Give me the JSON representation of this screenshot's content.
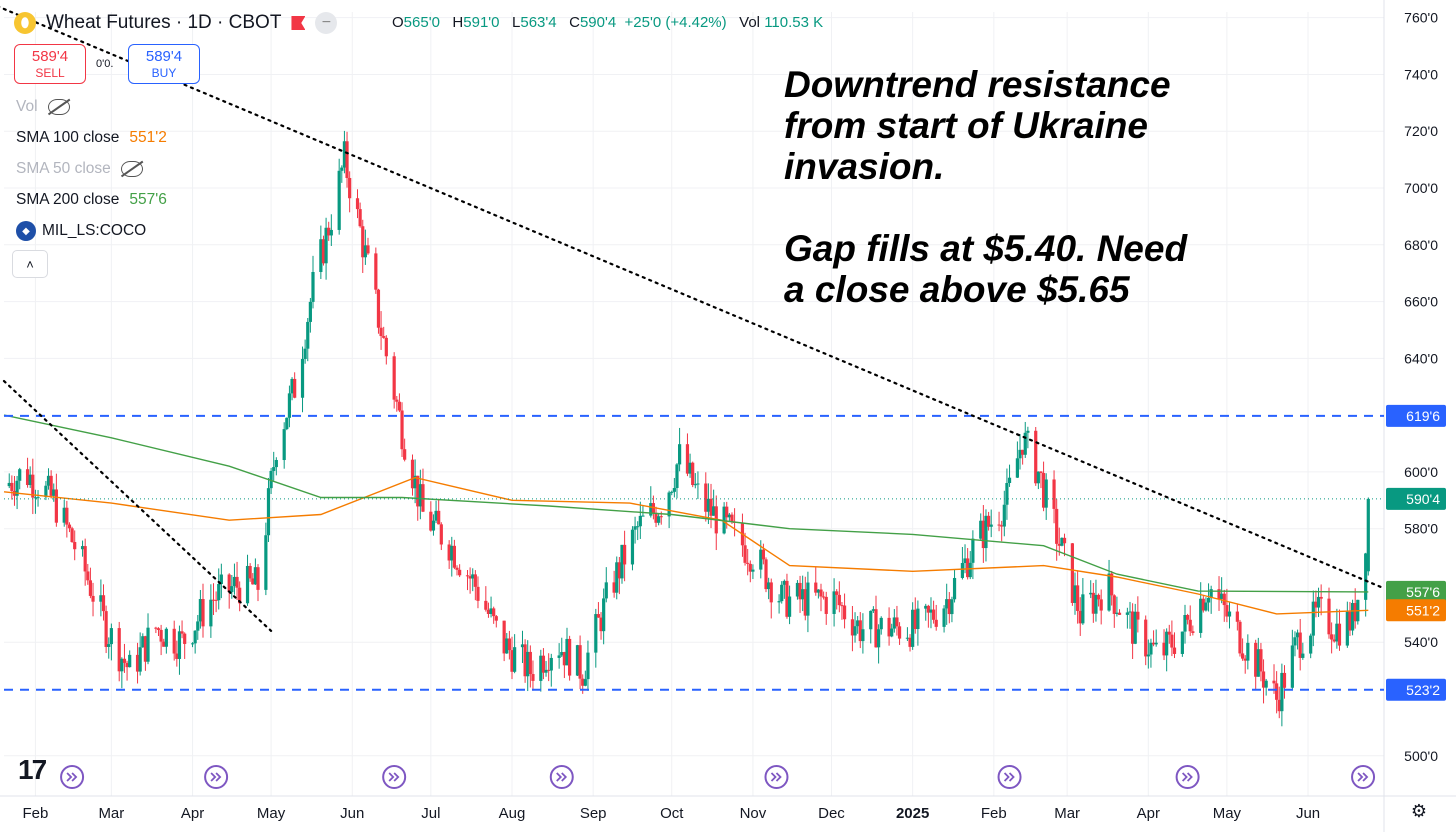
{
  "header": {
    "symbol_title": "Wheat Futures · 1D · CBOT",
    "logo_glyph": "⬮",
    "more_glyph": "−",
    "ohlc": {
      "o_label": "O",
      "o_value": "565'0",
      "h_label": "H",
      "h_value": "591'0",
      "l_label": "L",
      "l_value": "563'4",
      "c_label": "C",
      "c_value": "590'4",
      "change": "+25'0 (+4.42%)",
      "vol_label": "Vol",
      "vol_value": "110.53 K"
    }
  },
  "trade": {
    "sell_price": "589'4",
    "sell_label": "SELL",
    "buy_price": "589'4",
    "buy_label": "BUY",
    "spread": "0'0."
  },
  "indicators": {
    "vol_label": "Vol",
    "sma100_label": "SMA 100 close",
    "sma100_value": "551'2",
    "sma50_label": "SMA 50 close",
    "sma200_label": "SMA 200 close",
    "sma200_value": "557'6",
    "coco_label": "MIL_LS:COCO",
    "collapse_glyph": "˄"
  },
  "annotation": {
    "line1": "Downtrend resistance",
    "line2": "from start of Ukraine",
    "line3": "invasion.",
    "line4": "Gap fills at $5.40. Need",
    "line5": "a close above $5.65"
  },
  "branding": {
    "tv_logo": "17"
  },
  "colors": {
    "up": "#089981",
    "down": "#f23645",
    "sma100": "#f57c00",
    "sma200": "#43a047",
    "hline": "#2962ff",
    "trendline": "#000000",
    "accent": "#2962ff",
    "event": "#7e57c2"
  },
  "icons": {
    "event_icon": "event-marker-icon",
    "settings_icon": "gear-icon",
    "eye_off": "eye-off-icon"
  },
  "chart_data": {
    "type": "candlestick",
    "title": "Wheat Futures · 1D · CBOT",
    "xlabel": "",
    "ylabel": "",
    "ylim": [
      495,
      762
    ],
    "y_ticks": [
      {
        "value": 760,
        "label": "760'0"
      },
      {
        "value": 740,
        "label": "740'0"
      },
      {
        "value": 720,
        "label": "720'0"
      },
      {
        "value": 700,
        "label": "700'0"
      },
      {
        "value": 680,
        "label": "680'0"
      },
      {
        "value": 660,
        "label": "660'0"
      },
      {
        "value": 640,
        "label": "640'0"
      },
      {
        "value": 600,
        "label": "600'0"
      },
      {
        "value": 580,
        "label": "580'0"
      },
      {
        "value": 540,
        "label": "540'0"
      },
      {
        "value": 500,
        "label": "500'0"
      }
    ],
    "x_range": [
      "2024-01-20",
      "2025-06-30"
    ],
    "x_ticks": [
      {
        "date": "2024-02-01",
        "label": "Feb"
      },
      {
        "date": "2024-03-01",
        "label": "Mar"
      },
      {
        "date": "2024-04-01",
        "label": "Apr"
      },
      {
        "date": "2024-05-01",
        "label": "May"
      },
      {
        "date": "2024-06-01",
        "label": "Jun"
      },
      {
        "date": "2024-07-01",
        "label": "Jul"
      },
      {
        "date": "2024-08-01",
        "label": "Aug"
      },
      {
        "date": "2024-09-01",
        "label": "Sep"
      },
      {
        "date": "2024-10-01",
        "label": "Oct"
      },
      {
        "date": "2024-11-01",
        "label": "Nov"
      },
      {
        "date": "2024-12-01",
        "label": "Dec"
      },
      {
        "date": "2025-01-01",
        "label": "2025"
      },
      {
        "date": "2025-02-01",
        "label": "Feb"
      },
      {
        "date": "2025-03-01",
        "label": "Mar"
      },
      {
        "date": "2025-04-01",
        "label": "Apr"
      },
      {
        "date": "2025-05-01",
        "label": "May"
      },
      {
        "date": "2025-06-01",
        "label": "Jun"
      }
    ],
    "price_path": [
      [
        "2024-01-20",
        595
      ],
      [
        "2024-01-28",
        600
      ],
      [
        "2024-02-08",
        590
      ],
      [
        "2024-02-18",
        570
      ],
      [
        "2024-02-28",
        545
      ],
      [
        "2024-03-08",
        530
      ],
      [
        "2024-03-18",
        545
      ],
      [
        "2024-03-28",
        540
      ],
      [
        "2024-04-08",
        555
      ],
      [
        "2024-04-18",
        560
      ],
      [
        "2024-04-26",
        560
      ],
      [
        "2024-05-03",
        610
      ],
      [
        "2024-05-10",
        630
      ],
      [
        "2024-05-17",
        665
      ],
      [
        "2024-05-24",
        690
      ],
      [
        "2024-05-29",
        710
      ],
      [
        "2024-06-04",
        685
      ],
      [
        "2024-06-12",
        650
      ],
      [
        "2024-06-20",
        615
      ],
      [
        "2024-06-28",
        585
      ],
      [
        "2024-07-08",
        575
      ],
      [
        "2024-07-18",
        560
      ],
      [
        "2024-07-28",
        540
      ],
      [
        "2024-08-08",
        530
      ],
      [
        "2024-08-18",
        540
      ],
      [
        "2024-08-28",
        530
      ],
      [
        "2024-09-08",
        560
      ],
      [
        "2024-09-18",
        580
      ],
      [
        "2024-09-28",
        590
      ],
      [
        "2024-10-04",
        605
      ],
      [
        "2024-10-12",
        590
      ],
      [
        "2024-10-22",
        580
      ],
      [
        "2024-11-02",
        570
      ],
      [
        "2024-11-12",
        555
      ],
      [
        "2024-11-22",
        555
      ],
      [
        "2024-12-02",
        555
      ],
      [
        "2024-12-12",
        545
      ],
      [
        "2024-12-22",
        545
      ],
      [
        "2025-01-04",
        545
      ],
      [
        "2025-01-14",
        555
      ],
      [
        "2025-01-25",
        575
      ],
      [
        "2025-02-06",
        590
      ],
      [
        "2025-02-12",
        612
      ],
      [
        "2025-02-18",
        600
      ],
      [
        "2025-02-26",
        575
      ],
      [
        "2025-03-06",
        550
      ],
      [
        "2025-03-16",
        560
      ],
      [
        "2025-03-26",
        545
      ],
      [
        "2025-04-05",
        535
      ],
      [
        "2025-04-15",
        545
      ],
      [
        "2025-04-24",
        560
      ],
      [
        "2025-05-04",
        545
      ],
      [
        "2025-05-14",
        530
      ],
      [
        "2025-05-20",
        520
      ],
      [
        "2025-05-28",
        540
      ],
      [
        "2025-06-05",
        550
      ],
      [
        "2025-06-12",
        545
      ],
      [
        "2025-06-18",
        548
      ],
      [
        "2025-06-22",
        565
      ],
      [
        "2025-06-24",
        590.5
      ]
    ],
    "series": [
      {
        "name": "SMA 100 close",
        "values": [
          [
            "2024-01-20",
            593
          ],
          [
            "2024-03-01",
            589
          ],
          [
            "2024-04-15",
            583
          ],
          [
            "2024-05-20",
            585
          ],
          [
            "2024-06-25",
            598
          ],
          [
            "2024-08-01",
            590
          ],
          [
            "2024-09-15",
            589
          ],
          [
            "2024-10-20",
            583
          ],
          [
            "2024-11-15",
            567
          ],
          [
            "2025-01-01",
            565
          ],
          [
            "2025-02-20",
            567
          ],
          [
            "2025-03-20",
            563
          ],
          [
            "2025-04-20",
            557
          ],
          [
            "2025-05-20",
            550
          ],
          [
            "2025-06-24",
            551.25
          ]
        ]
      },
      {
        "name": "SMA 200 close",
        "values": [
          [
            "2024-01-20",
            620
          ],
          [
            "2024-03-01",
            612
          ],
          [
            "2024-04-15",
            602
          ],
          [
            "2024-05-20",
            591
          ],
          [
            "2024-06-20",
            591
          ],
          [
            "2024-08-15",
            588
          ],
          [
            "2024-10-01",
            585
          ],
          [
            "2024-11-15",
            580
          ],
          [
            "2025-01-01",
            578
          ],
          [
            "2025-02-20",
            574
          ],
          [
            "2025-03-20",
            564
          ],
          [
            "2025-04-20",
            558
          ],
          [
            "2025-06-24",
            557.75
          ]
        ]
      }
    ],
    "horizontal_lines": [
      {
        "value": 619.75,
        "label": "619'6"
      },
      {
        "value": 523.25,
        "label": "523'2"
      }
    ],
    "trendlines": [
      {
        "from": [
          "2024-01-15",
          765
        ],
        "to": [
          "2025-06-30",
          559
        ]
      },
      {
        "from": [
          "2024-01-20",
          632
        ],
        "to": [
          "2024-05-01",
          544
        ]
      }
    ],
    "price_labels": [
      {
        "value": 619.75,
        "label": "619'6",
        "kind": "hline"
      },
      {
        "value": 590.5,
        "label": "590'4",
        "kind": "last"
      },
      {
        "value": 557.75,
        "label": "557'6",
        "kind": "sma200"
      },
      {
        "value": 551.25,
        "label": "551'2",
        "kind": "sma100"
      },
      {
        "value": 523.25,
        "label": "523'2",
        "kind": "hline"
      }
    ],
    "events": [
      "2024-02-15",
      "2024-04-10",
      "2024-06-17",
      "2024-08-20",
      "2024-11-10",
      "2025-02-07",
      "2025-04-16",
      "2025-06-22"
    ]
  }
}
